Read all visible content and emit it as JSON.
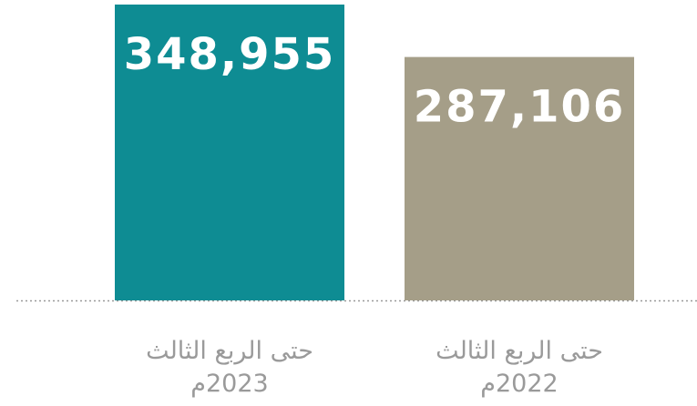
{
  "chart_data": {
    "type": "bar",
    "categories": [
      "حتى الربع الثالث\n2023م",
      "حتى الربع الثالث\n2022م"
    ],
    "values": [
      348955,
      287106
    ],
    "value_labels": [
      "348,955",
      "287,106"
    ],
    "colors": [
      "#0e8c93",
      "#a59e88"
    ]
  }
}
